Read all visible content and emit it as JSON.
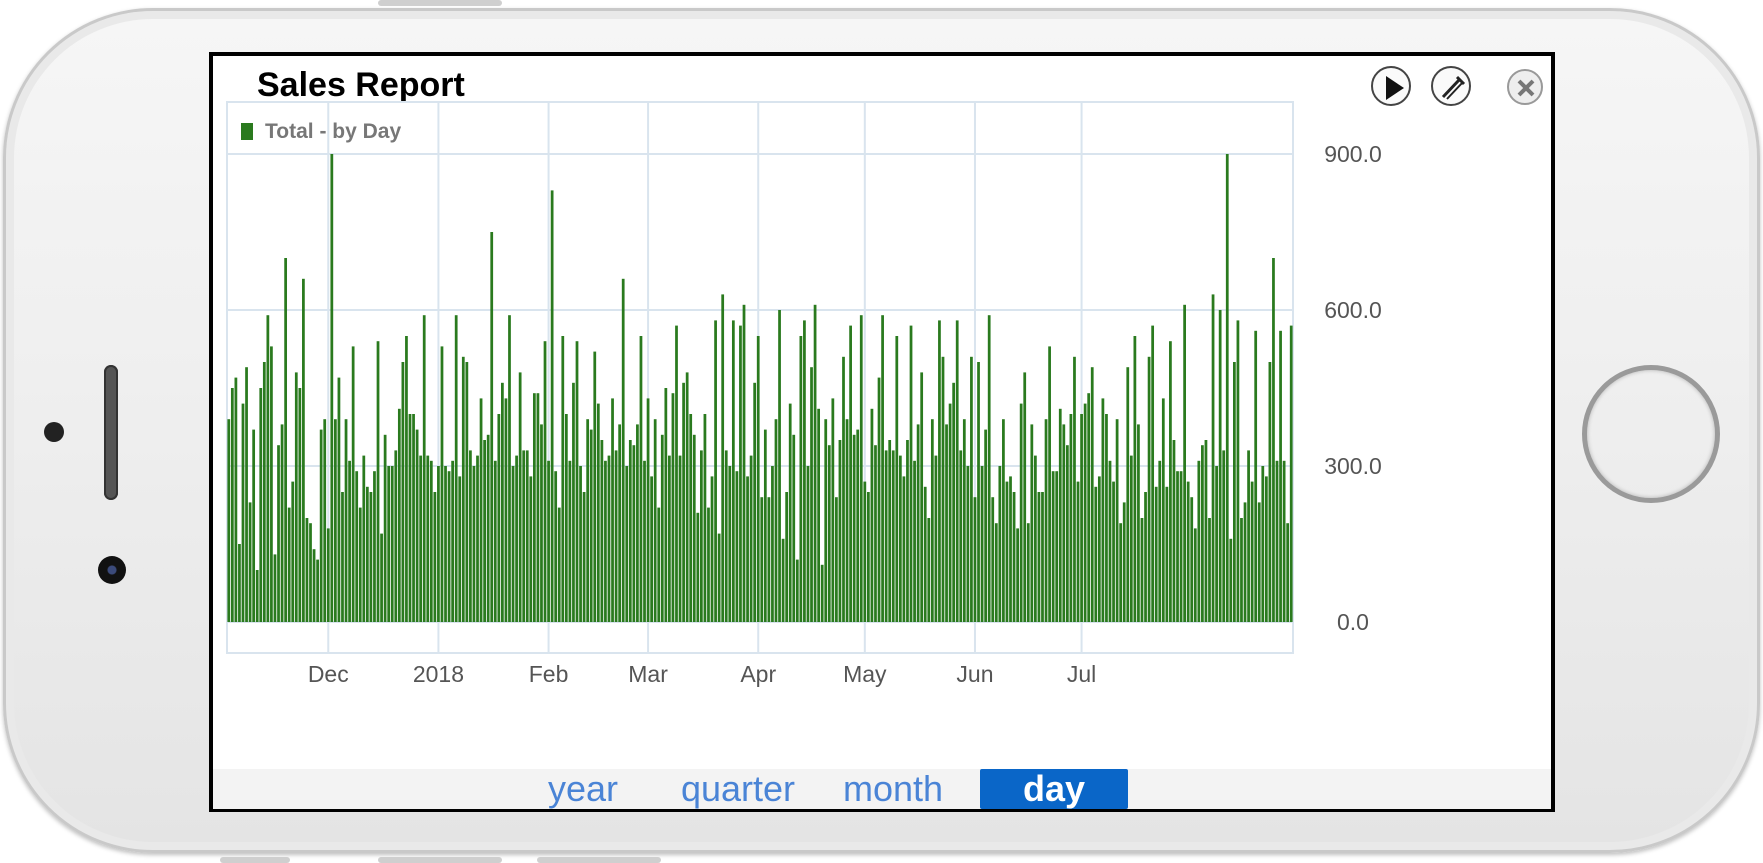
{
  "app": {
    "title": "Sales Report"
  },
  "toolbar": {
    "play_icon": "play-icon",
    "edit_icon": "edit-icon",
    "close_icon": "close-icon"
  },
  "segments": [
    {
      "label": "year",
      "active": false
    },
    {
      "label": "quarter",
      "active": false
    },
    {
      "label": "month",
      "active": false
    },
    {
      "label": "day",
      "active": true
    }
  ],
  "colors": {
    "bar": "#2a7a1e",
    "grid": "#d9e4ee",
    "active_segment": "#0a66c8",
    "segment_text": "#4a84d6"
  },
  "chart_data": {
    "type": "bar",
    "legend": "Total - by Day",
    "legend_position": "top-left",
    "grid": true,
    "ylim": [
      0,
      1000
    ],
    "y_ticks": [
      "0.0",
      "300.0",
      "600.0",
      "900.0"
    ],
    "y_tick_values": [
      0,
      300,
      600,
      900
    ],
    "x_ticks": [
      "Dec",
      "2018",
      "Feb",
      "Mar",
      "Apr",
      "May",
      "Jun",
      "Jul"
    ],
    "x_tick_dates": [
      "2017-12-01",
      "2018-01-01",
      "2018-02-01",
      "2018-03-01",
      "2018-04-01",
      "2018-05-01",
      "2018-06-01",
      "2018-07-01"
    ],
    "start_date": "2017-11-03",
    "values": [
      390,
      450,
      470,
      150,
      420,
      490,
      230,
      370,
      100,
      450,
      500,
      590,
      530,
      130,
      340,
      380,
      700,
      220,
      270,
      480,
      450,
      660,
      200,
      190,
      140,
      120,
      370,
      390,
      180,
      900,
      390,
      470,
      250,
      390,
      310,
      530,
      290,
      220,
      320,
      260,
      250,
      290,
      540,
      170,
      360,
      300,
      300,
      330,
      410,
      500,
      550,
      400,
      400,
      370,
      320,
      590,
      320,
      310,
      250,
      300,
      530,
      300,
      290,
      310,
      590,
      280,
      510,
      500,
      330,
      300,
      320,
      430,
      350,
      360,
      750,
      310,
      400,
      460,
      430,
      590,
      300,
      320,
      480,
      330,
      330,
      280,
      440,
      440,
      380,
      540,
      310,
      830,
      290,
      220,
      550,
      400,
      310,
      460,
      540,
      300,
      250,
      390,
      370,
      520,
      420,
      350,
      310,
      320,
      430,
      330,
      380,
      660,
      300,
      350,
      340,
      380,
      550,
      310,
      430,
      280,
      390,
      220,
      360,
      450,
      320,
      440,
      570,
      320,
      460,
      480,
      400,
      360,
      210,
      330,
      400,
      220,
      280,
      580,
      170,
      630,
      330,
      300,
      580,
      290,
      570,
      610,
      280,
      320,
      460,
      550,
      240,
      370,
      240,
      300,
      390,
      600,
      160,
      250,
      420,
      360,
      120,
      550,
      580,
      300,
      490,
      610,
      410,
      110,
      390,
      340,
      430,
      240,
      350,
      510,
      390,
      570,
      360,
      370,
      590,
      270,
      250,
      410,
      340,
      470,
      590,
      330,
      350,
      330,
      550,
      320,
      280,
      350,
      570,
      310,
      380,
      480,
      260,
      200,
      390,
      320,
      580,
      510,
      380,
      420,
      460,
      580,
      330,
      390,
      300,
      510,
      240,
      500,
      300,
      370,
      590,
      240,
      190,
      300,
      390,
      270,
      280,
      250,
      180,
      420,
      480,
      190,
      380,
      320,
      250,
      250,
      390,
      530,
      290,
      290,
      410,
      380,
      340,
      400,
      510,
      270,
      400,
      420,
      440,
      490,
      260,
      280,
      430,
      400,
      310,
      270,
      390,
      190,
      230,
      490,
      320,
      550,
      380,
      200,
      250,
      510,
      570,
      260,
      310,
      430,
      260,
      540,
      350,
      290,
      290,
      610,
      270,
      240,
      180,
      310,
      340,
      350,
      200,
      630,
      300,
      600,
      330,
      900,
      160,
      500,
      580,
      200,
      230,
      330,
      270,
      560,
      230,
      300,
      280,
      500,
      700,
      310,
      560,
      310,
      190,
      570
    ]
  }
}
